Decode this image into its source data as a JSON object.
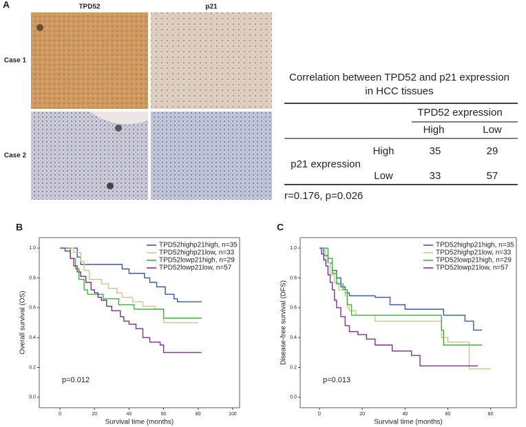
{
  "panel_a": {
    "label": "A",
    "columns": [
      "TPD52",
      "p21"
    ],
    "rows": [
      "Case 1",
      "Case 2"
    ]
  },
  "table": {
    "title": [
      "Correlation between TPD52 and p21 expression",
      "in HCC tissues"
    ],
    "column_group": "TPD52 expression",
    "columns": [
      "High",
      "Low"
    ],
    "row_group": "p21 expression",
    "rows": [
      {
        "label": "High",
        "cells": [
          35,
          29
        ]
      },
      {
        "label": "Low",
        "cells": [
          33,
          57
        ]
      }
    ],
    "note": "r=0.176, p=0.026"
  },
  "chart_data": [
    {
      "type": "step",
      "label": "B",
      "xlabel": "Survival time (months)",
      "ylabel": "Overall survival (OS)",
      "annotation": "p=0.012",
      "xlim": [
        -12,
        104
      ],
      "ylim": [
        -0.07,
        1.07
      ],
      "xticks": [
        0,
        20,
        40,
        60,
        80,
        100
      ],
      "yticks": [
        {
          "value": 0,
          "label": "0.0"
        },
        {
          "value": 0.2,
          "label": "0.2"
        },
        {
          "value": 0.4,
          "label": "0.4"
        },
        {
          "value": 0.6,
          "label": "0.6"
        },
        {
          "value": 0.8,
          "label": "0.8"
        },
        {
          "value": 1,
          "label": "1.0"
        }
      ],
      "series": [
        {
          "name": "TPD52highp21high, n=35",
          "color": "#3a57a8",
          "x": [
            0,
            10,
            12,
            36,
            40,
            49,
            52,
            56,
            61,
            66,
            68,
            82
          ],
          "values": [
            1,
            0.94,
            0.89,
            0.86,
            0.83,
            0.8,
            0.77,
            0.74,
            0.69,
            0.66,
            0.64,
            0.64
          ]
        },
        {
          "name": "TPD52highp21low, n=33",
          "color": "#d2c28a",
          "x": [
            0,
            8,
            12,
            14,
            17,
            24,
            28,
            33,
            36,
            42,
            48,
            55,
            60,
            80
          ],
          "values": [
            1,
            0.97,
            0.91,
            0.85,
            0.79,
            0.76,
            0.73,
            0.7,
            0.67,
            0.64,
            0.61,
            0.59,
            0.5,
            0.5
          ]
        },
        {
          "name": "TPD52lowp21high, n=29",
          "color": "#3cb33c",
          "x": [
            0,
            6,
            9,
            11,
            14,
            16,
            25,
            34,
            43,
            60,
            82
          ],
          "values": [
            1,
            0.93,
            0.86,
            0.79,
            0.72,
            0.69,
            0.66,
            0.62,
            0.59,
            0.53,
            0.53
          ]
        },
        {
          "name": "TPD52lowp21low, n=57",
          "color": "#7b2f8e",
          "x": [
            0,
            3,
            6,
            8,
            10,
            12,
            15,
            18,
            20,
            22,
            24,
            27,
            30,
            35,
            37,
            40,
            44,
            48,
            52,
            58,
            60,
            82
          ],
          "values": [
            1,
            0.98,
            0.93,
            0.88,
            0.84,
            0.81,
            0.77,
            0.72,
            0.7,
            0.67,
            0.65,
            0.61,
            0.58,
            0.54,
            0.51,
            0.49,
            0.46,
            0.4,
            0.37,
            0.35,
            0.3,
            0.3
          ]
        }
      ]
    },
    {
      "type": "step",
      "label": "C",
      "xlabel": "Survival time (months)",
      "ylabel": "Disease-free survival (DFS)",
      "annotation": "p=0.013",
      "xlim": [
        -9,
        92
      ],
      "ylim": [
        -0.07,
        1.07
      ],
      "xticks": [
        0,
        20,
        40,
        60,
        80
      ],
      "yticks": [
        {
          "value": 0,
          "label": "0.0"
        },
        {
          "value": 0.2,
          "label": "0.2"
        },
        {
          "value": 0.4,
          "label": "0.4"
        },
        {
          "value": 0.6,
          "label": "0.6"
        },
        {
          "value": 0.8,
          "label": "0.8"
        },
        {
          "value": 1,
          "label": "1.0"
        }
      ],
      "series": [
        {
          "name": "TPD52highp21high, n=35",
          "color": "#3a57a8",
          "x": [
            0,
            2,
            4,
            6,
            8,
            10,
            12,
            14,
            26,
            33,
            40,
            58,
            68,
            72,
            76
          ],
          "values": [
            1,
            0.95,
            0.9,
            0.85,
            0.8,
            0.74,
            0.7,
            0.68,
            0.67,
            0.62,
            0.59,
            0.55,
            0.51,
            0.45,
            0.45
          ]
        },
        {
          "name": "TPD52highp21low, n=33",
          "color": "#d2c28a",
          "x": [
            0,
            3,
            5,
            7,
            9,
            12,
            13,
            14,
            17,
            26,
            57,
            60,
            70,
            80
          ],
          "values": [
            1,
            0.9,
            0.82,
            0.77,
            0.72,
            0.68,
            0.6,
            0.58,
            0.55,
            0.51,
            0.4,
            0.37,
            0.19,
            0.19
          ]
        },
        {
          "name": "TPD52lowp21high, n=29",
          "color": "#3cb33c",
          "x": [
            0,
            4,
            6,
            8,
            11,
            13,
            15,
            57,
            58,
            76
          ],
          "values": [
            1,
            0.93,
            0.83,
            0.76,
            0.72,
            0.62,
            0.55,
            0.45,
            0.35,
            0.35
          ]
        },
        {
          "name": "TPD52lowp21low, n=57",
          "color": "#7b2f8e",
          "x": [
            0,
            1,
            2,
            3,
            4,
            5,
            6,
            7,
            8,
            10,
            12,
            14,
            18,
            22,
            26,
            34,
            43,
            47,
            74
          ],
          "values": [
            1,
            0.96,
            0.92,
            0.88,
            0.82,
            0.77,
            0.72,
            0.65,
            0.6,
            0.54,
            0.48,
            0.44,
            0.42,
            0.39,
            0.35,
            0.31,
            0.28,
            0.21,
            0.21
          ]
        }
      ]
    }
  ]
}
